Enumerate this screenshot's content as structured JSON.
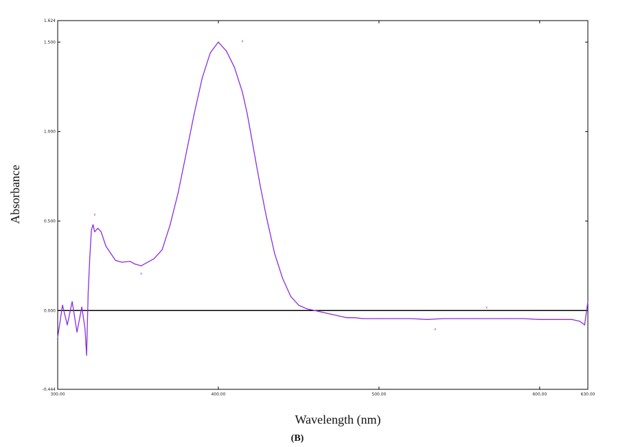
{
  "chart_data": {
    "type": "line",
    "title": "",
    "xlabel": "Wavelength (nm)",
    "ylabel": "Absorbance",
    "panel_label": "(B)",
    "xlim": [
      300,
      630
    ],
    "ylim": [
      -0.44,
      1.62
    ],
    "x_ticks": [
      {
        "value": 300,
        "label": "300.00"
      },
      {
        "value": 400,
        "label": "400.00"
      },
      {
        "value": 500,
        "label": "500.00"
      },
      {
        "value": 600,
        "label": "600.00"
      },
      {
        "value": 630,
        "label": "630.00"
      }
    ],
    "y_ticks": [
      {
        "value": -0.44,
        "label": "-0.444"
      },
      {
        "value": 0.0,
        "label": "0.000"
      },
      {
        "value": 0.5,
        "label": "0.500"
      },
      {
        "value": 1.0,
        "label": "1.000"
      },
      {
        "value": 1.5,
        "label": "1.500"
      },
      {
        "value": 1.62,
        "label": "1.624"
      }
    ],
    "grid": false,
    "baseline": 0,
    "line_color": "#8a2be2",
    "baseline_color": "#000000",
    "series": [
      {
        "x": [
          300,
          303,
          306,
          309,
          312,
          315,
          317,
          318,
          319,
          320,
          321,
          322,
          323,
          325,
          327,
          330,
          333,
          336,
          340,
          345,
          348,
          352,
          356,
          360,
          365,
          370,
          375,
          380,
          385,
          390,
          395,
          400,
          405,
          410,
          415,
          418,
          420,
          423,
          426,
          430,
          435,
          440,
          445,
          450,
          455,
          460,
          465,
          470,
          475,
          480,
          485,
          490,
          495,
          500,
          510,
          520,
          530,
          540,
          550,
          560,
          570,
          580,
          590,
          600,
          610,
          620,
          625,
          628,
          630
        ],
        "y": [
          -0.15,
          0.03,
          -0.08,
          0.05,
          -0.12,
          0.02,
          -0.1,
          -0.25,
          0.1,
          0.3,
          0.45,
          0.48,
          0.44,
          0.46,
          0.44,
          0.36,
          0.32,
          0.28,
          0.27,
          0.275,
          0.26,
          0.25,
          0.27,
          0.29,
          0.34,
          0.48,
          0.66,
          0.88,
          1.1,
          1.3,
          1.44,
          1.5,
          1.45,
          1.36,
          1.22,
          1.1,
          1.0,
          0.85,
          0.7,
          0.52,
          0.32,
          0.18,
          0.08,
          0.03,
          0.01,
          0.0,
          -0.01,
          -0.02,
          -0.03,
          -0.04,
          -0.04,
          -0.045,
          -0.045,
          -0.045,
          -0.045,
          -0.045,
          -0.05,
          -0.045,
          -0.045,
          -0.045,
          -0.045,
          -0.045,
          -0.045,
          -0.05,
          -0.05,
          -0.05,
          -0.06,
          -0.08,
          0.05
        ]
      }
    ],
    "annotations": [
      {
        "x": 323,
        "y": 0.53,
        "label": "x"
      },
      {
        "x": 352,
        "y": 0.2,
        "label": "x"
      },
      {
        "x": 415,
        "y": 1.5,
        "label": "x"
      },
      {
        "x": 535,
        "y": -0.11,
        "label": "x"
      },
      {
        "x": 567,
        "y": 0.01,
        "label": "x"
      }
    ]
  }
}
